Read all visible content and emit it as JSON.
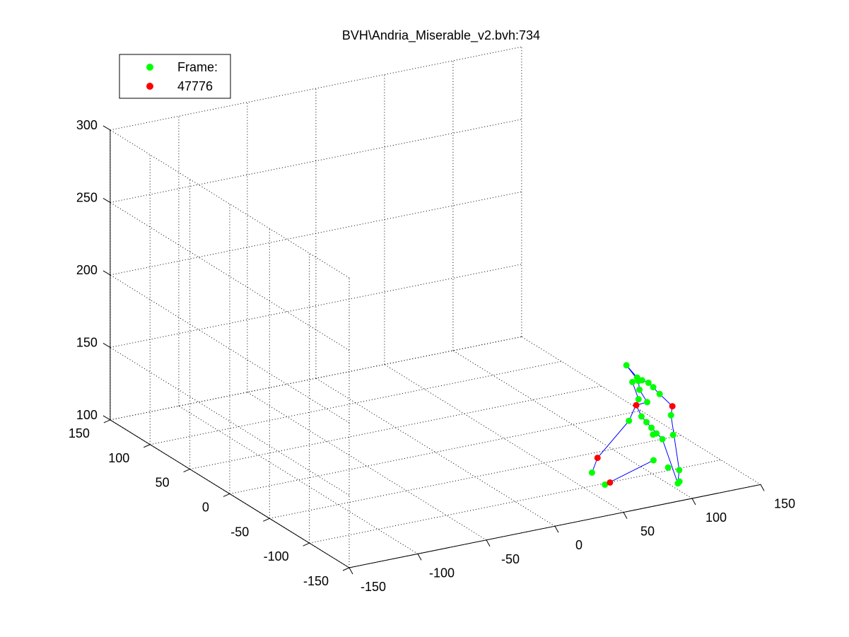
{
  "window": {
    "title": "BVH\\Andria_Miserable_v2.bvh:734"
  },
  "chart_data": {
    "type": "scatter3d",
    "title": "BVH\\Andria_Miserable_v2.bvh:734",
    "xlabel": "",
    "ylabel": "",
    "zlabel": "",
    "xlim": [
      -150,
      150
    ],
    "ylim": [
      -150,
      150
    ],
    "zlim": [
      100,
      300
    ],
    "x_ticks": [
      -150,
      -100,
      -50,
      0,
      50,
      100,
      150
    ],
    "y_ticks": [
      -150,
      -100,
      -50,
      0,
      50,
      100,
      150
    ],
    "z_ticks": [
      100,
      150,
      200,
      250,
      300
    ],
    "grid": true,
    "legend": {
      "placement": "top-left",
      "entries": [
        {
          "label": "Frame:",
          "color": "#00ff00"
        },
        {
          "label": "47776",
          "color": "#ff0000"
        }
      ]
    },
    "colors": {
      "joints": "#00ff00",
      "end_sites": "#ff0000",
      "bones": "#0000ff"
    },
    "series": [
      {
        "name": "Frame:",
        "color": "#00ff00",
        "points": [
          [
            117,
            -80,
            145
          ],
          [
            117,
            -72,
            147
          ],
          [
            117,
            -66,
            148
          ],
          [
            117,
            -58,
            147
          ],
          [
            118,
            -50,
            146
          ],
          [
            123,
            -28,
            146
          ],
          [
            126,
            -38,
            138
          ],
          [
            116,
            -96,
            136
          ],
          [
            129,
            -34,
            130
          ],
          [
            132,
            -20,
            130
          ],
          [
            130,
            -42,
            124
          ],
          [
            133,
            -26,
            120
          ],
          [
            128,
            -78,
            114
          ],
          [
            124,
            -64,
            111
          ],
          [
            125,
            -56,
            112
          ],
          [
            126,
            -48,
            113
          ],
          [
            127,
            -40,
            114
          ],
          [
            126,
            -68,
            108
          ],
          [
            125,
            -58,
            108
          ],
          [
            122,
            -96,
            97
          ],
          [
            121,
            -98,
            90
          ],
          [
            122,
            -82,
            94
          ],
          [
            123,
            -62,
            92
          ],
          [
            121,
            -96,
            88
          ],
          [
            133,
            -14,
            101
          ],
          [
            112,
            -20,
            63
          ],
          [
            113,
            -2,
            65
          ]
        ]
      },
      {
        "name": "47776",
        "color": "#ff0000",
        "points": [
          [
            117,
            -96,
            142
          ],
          [
            129,
            -30,
            118
          ],
          [
            118,
            -16,
            62
          ],
          [
            124,
            10,
            69
          ]
        ]
      }
    ],
    "bones": [
      [
        [
          117,
          -96,
          142
        ],
        [
          117,
          -80,
          145
        ]
      ],
      [
        [
          117,
          -80,
          145
        ],
        [
          117,
          -66,
          148
        ]
      ],
      [
        [
          117,
          -66,
          148
        ],
        [
          118,
          -50,
          146
        ]
      ],
      [
        [
          118,
          -50,
          146
        ],
        [
          123,
          -28,
          146
        ]
      ],
      [
        [
          117,
          -96,
          142
        ],
        [
          116,
          -96,
          136
        ]
      ],
      [
        [
          116,
          -96,
          136
        ],
        [
          122,
          -96,
          97
        ]
      ],
      [
        [
          122,
          -96,
          97
        ],
        [
          121,
          -96,
          88
        ]
      ],
      [
        [
          123,
          -28,
          146
        ],
        [
          126,
          -38,
          138
        ]
      ],
      [
        [
          126,
          -38,
          138
        ],
        [
          129,
          -34,
          130
        ]
      ],
      [
        [
          129,
          -34,
          130
        ],
        [
          130,
          -42,
          124
        ]
      ],
      [
        [
          130,
          -42,
          124
        ],
        [
          129,
          -30,
          118
        ]
      ],
      [
        [
          129,
          -30,
          118
        ],
        [
          127,
          -40,
          114
        ]
      ],
      [
        [
          127,
          -40,
          114
        ],
        [
          125,
          -56,
          112
        ]
      ],
      [
        [
          125,
          -56,
          112
        ],
        [
          126,
          -68,
          108
        ]
      ],
      [
        [
          126,
          -68,
          108
        ],
        [
          121,
          -96,
          88
        ]
      ],
      [
        [
          132,
          -20,
          130
        ],
        [
          133,
          -26,
          120
        ]
      ],
      [
        [
          133,
          -26,
          120
        ],
        [
          133,
          -14,
          101
        ]
      ],
      [
        [
          133,
          -14,
          101
        ],
        [
          124,
          10,
          69
        ]
      ],
      [
        [
          124,
          10,
          69
        ],
        [
          113,
          -2,
          65
        ]
      ],
      [
        [
          123,
          -62,
          92
        ],
        [
          112,
          -20,
          63
        ]
      ],
      [
        [
          112,
          -20,
          63
        ],
        [
          118,
          -16,
          62
        ]
      ]
    ]
  }
}
